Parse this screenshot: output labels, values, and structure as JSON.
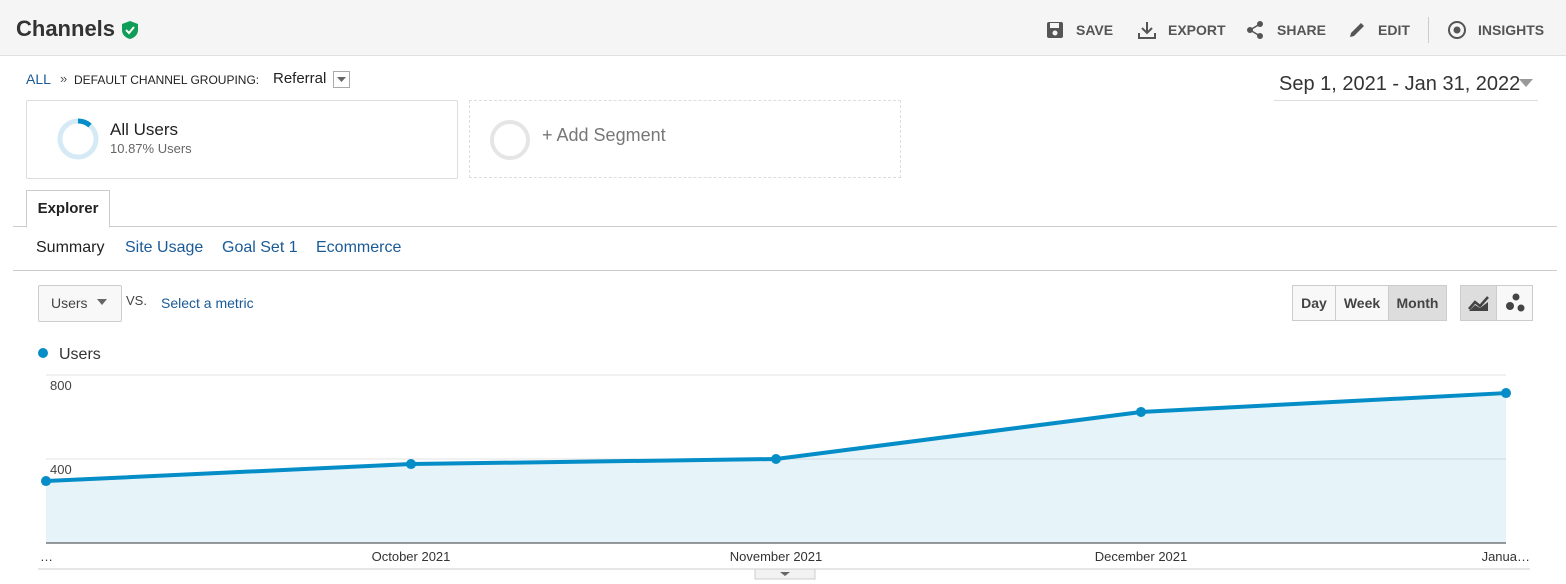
{
  "header": {
    "title": "Channels",
    "actions": [
      "SAVE",
      "EXPORT",
      "SHARE",
      "EDIT",
      "INSIGHTS"
    ]
  },
  "breadcrumb": {
    "all": "ALL",
    "separator": "»",
    "label": "DEFAULT CHANNEL GROUPING:",
    "value": "Referral"
  },
  "date_range": "Sep 1, 2021 - Jan 31, 2022",
  "segments": [
    {
      "name": "All Users",
      "detail": "10.87% Users"
    }
  ],
  "add_segment": "+ Add Segment",
  "tabs": [
    "Explorer"
  ],
  "subtabs": [
    "Summary",
    "Site Usage",
    "Goal Set 1",
    "Ecommerce"
  ],
  "metric": {
    "selected": "Users",
    "vs": "VS.",
    "select": "Select a metric"
  },
  "granularity": [
    "Day",
    "Week",
    "Month"
  ],
  "chart_data": {
    "type": "line",
    "area": true,
    "categories": [
      "…",
      "October 2021",
      "November 2021",
      "December 2021",
      "Janua…"
    ],
    "series": [
      {
        "name": "Users",
        "color": "#058dc7",
        "values": [
          295,
          376,
          400,
          624,
          714
        ]
      }
    ],
    "ylim": [
      0,
      800
    ],
    "yticks": [
      400,
      800
    ],
    "grid": true
  }
}
